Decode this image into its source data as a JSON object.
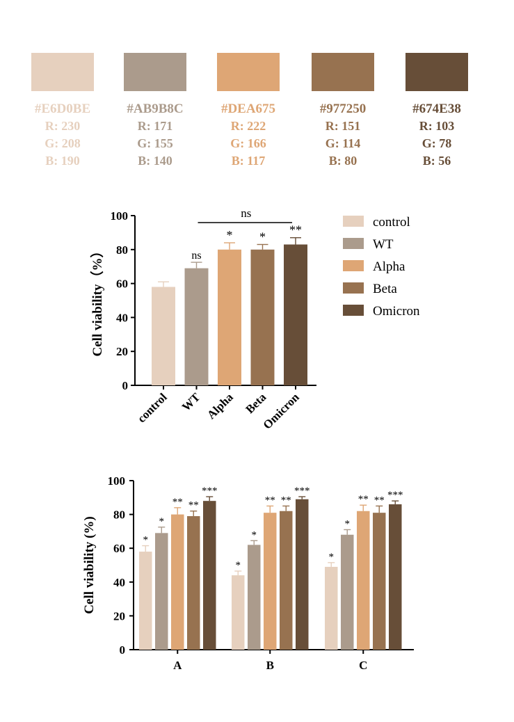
{
  "swatches": [
    {
      "hex": "#E6D0BE",
      "r": "R: 230",
      "g": "G: 208",
      "b": "B: 190",
      "color": "#E6D0BE"
    },
    {
      "hex": "#AB9B8C",
      "r": "R: 171",
      "g": "G: 155",
      "b": "B: 140",
      "color": "#AB9B8C"
    },
    {
      "hex": "#DEA675",
      "r": "R: 222",
      "g": "G: 166",
      "b": "B: 117",
      "color": "#DEA675"
    },
    {
      "hex": "#977250",
      "r": "R: 151",
      "g": "G: 114",
      "b": "B: 80",
      "color": "#977250"
    },
    {
      "hex": "#674E38",
      "r": "R: 103",
      "g": "G: 78",
      "b": "B: 56",
      "color": "#674E38"
    }
  ],
  "chart_data": [
    {
      "type": "bar",
      "ylabel": "Cell viability（%）",
      "ylim": [
        0,
        100
      ],
      "yticks": [
        0,
        20,
        40,
        60,
        80,
        100
      ],
      "categories": [
        "control",
        "WT",
        "Alpha",
        "Beta",
        "Omicron"
      ],
      "values": [
        58,
        69,
        80,
        80,
        83
      ],
      "errors": [
        3,
        3.5,
        4,
        3,
        4
      ],
      "significance": [
        "",
        "ns",
        "*",
        "*",
        "**"
      ],
      "bracket_label": "ns",
      "colors": [
        "#E6D0BE",
        "#AB9B8C",
        "#DEA675",
        "#977250",
        "#674E38"
      ],
      "legend": [
        "control",
        "WT",
        "Alpha",
        "Beta",
        "Omicron"
      ],
      "legend_position": "right"
    },
    {
      "type": "bar",
      "ylabel": "Cell viability (%)",
      "ylim": [
        0,
        100
      ],
      "yticks": [
        0,
        20,
        40,
        60,
        80,
        100
      ],
      "categories": [
        "A",
        "B",
        "C"
      ],
      "series": [
        {
          "values": [
            58,
            44,
            49
          ],
          "errors": [
            3.5,
            2.5,
            2.5
          ],
          "significance": [
            "*",
            "*",
            "*"
          ],
          "color": "#E6D0BE"
        },
        {
          "values": [
            69,
            62,
            68
          ],
          "errors": [
            3.5,
            2.5,
            3
          ],
          "significance": [
            "*",
            "*",
            "*"
          ],
          "color": "#AB9B8C"
        },
        {
          "values": [
            80,
            81,
            82
          ],
          "errors": [
            4,
            4,
            3.5
          ],
          "significance": [
            "**",
            "**",
            "**"
          ],
          "color": "#DEA675"
        },
        {
          "values": [
            79,
            82,
            81
          ],
          "errors": [
            3,
            3,
            4
          ],
          "significance": [
            "**",
            "**",
            "**"
          ],
          "color": "#977250"
        },
        {
          "values": [
            88,
            89,
            86
          ],
          "errors": [
            2.5,
            1.5,
            2
          ],
          "significance": [
            "***",
            "***",
            "***"
          ],
          "color": "#674E38"
        }
      ]
    }
  ]
}
